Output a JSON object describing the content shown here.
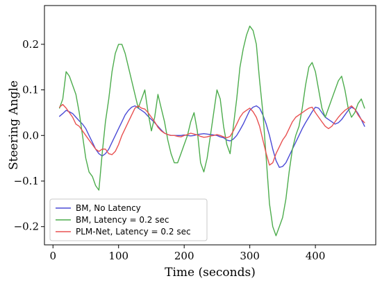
{
  "chart_data": {
    "type": "line",
    "xlabel": "Time (seconds)",
    "ylabel": "Steering Angle",
    "xlim": [
      -13,
      492
    ],
    "ylim": [
      -0.24,
      0.285
    ],
    "xticks": [
      0,
      100,
      200,
      300,
      400
    ],
    "xtick_labels": [
      "0",
      "100",
      "200",
      "300",
      "400"
    ],
    "yticks": [
      -0.2,
      -0.1,
      0.0,
      0.1,
      0.2
    ],
    "ytick_labels": [
      "−0.2",
      "−0.1",
      "0.0",
      "0.1",
      "0.2"
    ],
    "grid": false,
    "legend_position": "lower-left",
    "series": [
      {
        "name": "BM, No Latency",
        "color": "#4a4ad6",
        "x": [
          10,
          15,
          20,
          25,
          30,
          35,
          40,
          45,
          50,
          55,
          60,
          65,
          70,
          75,
          80,
          85,
          90,
          95,
          100,
          105,
          110,
          115,
          120,
          125,
          130,
          135,
          140,
          145,
          150,
          155,
          160,
          165,
          170,
          175,
          180,
          185,
          190,
          195,
          200,
          205,
          210,
          215,
          220,
          225,
          230,
          235,
          240,
          245,
          250,
          255,
          260,
          265,
          270,
          275,
          280,
          285,
          290,
          295,
          300,
          305,
          310,
          315,
          320,
          325,
          330,
          335,
          340,
          345,
          350,
          355,
          360,
          365,
          370,
          375,
          380,
          385,
          390,
          395,
          400,
          405,
          410,
          415,
          420,
          425,
          430,
          435,
          440,
          445,
          450,
          455,
          460,
          465,
          470,
          475
        ],
        "y": [
          0.042,
          0.048,
          0.055,
          0.052,
          0.048,
          0.04,
          0.032,
          0.025,
          0.015,
          0.0,
          -0.015,
          -0.03,
          -0.04,
          -0.045,
          -0.04,
          -0.03,
          -0.015,
          0.0,
          0.015,
          0.03,
          0.045,
          0.055,
          0.062,
          0.065,
          0.06,
          0.055,
          0.05,
          0.042,
          0.035,
          0.028,
          0.02,
          0.012,
          0.005,
          0.002,
          0.0,
          0.0,
          0.0,
          0.0,
          0.001,
          0.0,
          -0.001,
          0.0,
          0.002,
          0.003,
          0.004,
          0.003,
          0.002,
          0.001,
          0.0,
          -0.003,
          -0.005,
          -0.01,
          -0.012,
          -0.008,
          0.0,
          0.012,
          0.025,
          0.04,
          0.055,
          0.062,
          0.065,
          0.06,
          0.045,
          0.025,
          0.0,
          -0.03,
          -0.055,
          -0.07,
          -0.068,
          -0.06,
          -0.045,
          -0.03,
          -0.015,
          0.0,
          0.015,
          0.028,
          0.04,
          0.052,
          0.062,
          0.06,
          0.05,
          0.04,
          0.035,
          0.03,
          0.025,
          0.028,
          0.035,
          0.045,
          0.055,
          0.062,
          0.058,
          0.048,
          0.035,
          0.02
        ]
      },
      {
        "name": "BM, Latency = 0.2 sec",
        "color": "#4cac4c",
        "x": [
          10,
          15,
          20,
          25,
          30,
          35,
          40,
          45,
          50,
          55,
          60,
          65,
          70,
          75,
          80,
          85,
          90,
          95,
          100,
          105,
          110,
          115,
          120,
          125,
          130,
          135,
          140,
          145,
          150,
          155,
          160,
          165,
          170,
          175,
          180,
          185,
          190,
          195,
          200,
          205,
          210,
          215,
          220,
          225,
          230,
          235,
          240,
          245,
          250,
          255,
          260,
          265,
          270,
          275,
          280,
          285,
          290,
          295,
          300,
          305,
          310,
          315,
          320,
          325,
          330,
          335,
          340,
          345,
          350,
          355,
          360,
          365,
          370,
          375,
          380,
          385,
          390,
          395,
          400,
          405,
          410,
          415,
          420,
          425,
          430,
          435,
          440,
          445,
          450,
          455,
          460,
          465,
          470,
          475
        ],
        "y": [
          0.06,
          0.08,
          0.14,
          0.13,
          0.11,
          0.09,
          0.05,
          0.0,
          -0.05,
          -0.08,
          -0.09,
          -0.11,
          -0.12,
          -0.04,
          0.03,
          0.08,
          0.14,
          0.18,
          0.2,
          0.2,
          0.18,
          0.15,
          0.12,
          0.09,
          0.06,
          0.08,
          0.1,
          0.05,
          0.01,
          0.04,
          0.09,
          0.06,
          0.03,
          -0.01,
          -0.04,
          -0.06,
          -0.06,
          -0.04,
          -0.02,
          0.0,
          0.03,
          0.05,
          0.01,
          -0.06,
          -0.08,
          -0.05,
          0.0,
          0.05,
          0.1,
          0.08,
          0.02,
          -0.02,
          -0.04,
          0.02,
          0.08,
          0.15,
          0.19,
          0.22,
          0.24,
          0.23,
          0.2,
          0.12,
          0.05,
          -0.05,
          -0.15,
          -0.2,
          -0.22,
          -0.2,
          -0.18,
          -0.14,
          -0.08,
          -0.03,
          0.0,
          0.02,
          0.06,
          0.11,
          0.15,
          0.16,
          0.14,
          0.1,
          0.06,
          0.04,
          0.06,
          0.08,
          0.1,
          0.12,
          0.13,
          0.1,
          0.06,
          0.04,
          0.05,
          0.07,
          0.08,
          0.06
        ]
      },
      {
        "name": "PLM-Net, Latency = 0.2 sec",
        "color": "#e85050",
        "x": [
          10,
          15,
          20,
          25,
          30,
          35,
          40,
          45,
          50,
          55,
          60,
          65,
          70,
          75,
          80,
          85,
          90,
          95,
          100,
          105,
          110,
          115,
          120,
          125,
          130,
          135,
          140,
          145,
          150,
          155,
          160,
          165,
          170,
          175,
          180,
          185,
          190,
          195,
          200,
          205,
          210,
          215,
          220,
          225,
          230,
          235,
          240,
          245,
          250,
          255,
          260,
          265,
          270,
          275,
          280,
          285,
          290,
          295,
          300,
          305,
          310,
          315,
          320,
          325,
          330,
          335,
          340,
          345,
          350,
          355,
          360,
          365,
          370,
          375,
          380,
          385,
          390,
          395,
          400,
          405,
          410,
          415,
          420,
          425,
          430,
          435,
          440,
          445,
          450,
          455,
          460,
          465,
          470,
          475
        ],
        "y": [
          0.062,
          0.068,
          0.06,
          0.05,
          0.04,
          0.025,
          0.02,
          0.01,
          0.0,
          -0.01,
          -0.02,
          -0.03,
          -0.035,
          -0.03,
          -0.03,
          -0.04,
          -0.042,
          -0.035,
          -0.02,
          0.0,
          0.015,
          0.03,
          0.045,
          0.06,
          0.065,
          0.06,
          0.058,
          0.05,
          0.04,
          0.03,
          0.018,
          0.01,
          0.005,
          0.002,
          0.0,
          0.0,
          -0.002,
          -0.003,
          0.0,
          0.002,
          0.005,
          0.003,
          0.001,
          -0.002,
          -0.004,
          -0.003,
          -0.001,
          0.0,
          0.002,
          0.0,
          -0.003,
          -0.005,
          -0.002,
          0.01,
          0.025,
          0.04,
          0.05,
          0.055,
          0.06,
          0.052,
          0.04,
          0.02,
          -0.01,
          -0.04,
          -0.065,
          -0.06,
          -0.04,
          -0.025,
          -0.01,
          0.0,
          0.015,
          0.03,
          0.04,
          0.045,
          0.05,
          0.055,
          0.06,
          0.062,
          0.05,
          0.04,
          0.03,
          0.02,
          0.015,
          0.02,
          0.03,
          0.04,
          0.048,
          0.055,
          0.06,
          0.065,
          0.058,
          0.045,
          0.035,
          0.028
        ]
      }
    ]
  }
}
